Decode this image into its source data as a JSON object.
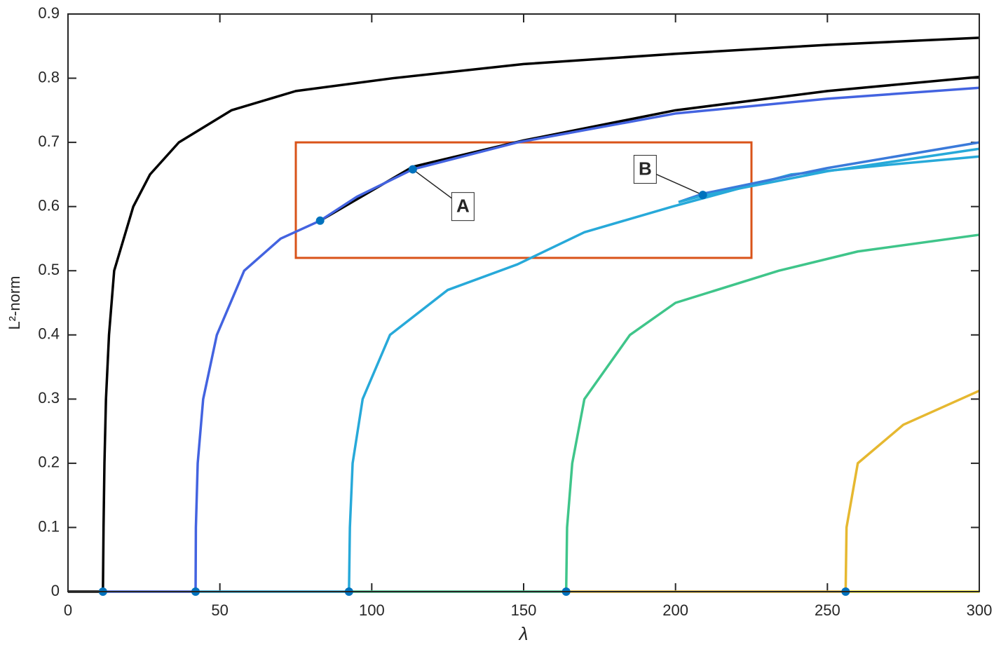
{
  "chart_data": {
    "type": "line",
    "xlabel": "λ",
    "ylabel": "L²-norm",
    "xlim": [
      0,
      300
    ],
    "xticks": [
      0,
      50,
      100,
      150,
      200,
      250,
      300
    ],
    "ylim": [
      0,
      0.9
    ],
    "yticks": [
      0,
      0.1,
      0.2,
      0.3,
      0.4,
      0.5,
      0.6,
      0.7,
      0.8,
      0.9
    ],
    "series": [
      {
        "color": "#000000",
        "x": [
          11.5,
          11.7,
          12,
          12.5,
          13.5,
          15.2,
          21.5,
          27,
          36.5,
          53.8,
          75,
          107,
          150,
          200,
          250,
          300
        ],
        "values": [
          0,
          0.1,
          0.2,
          0.3,
          0.4,
          0.5,
          0.6,
          0.65,
          0.7,
          0.75,
          0.78,
          0.8,
          0.822,
          0.838,
          0.852,
          0.863
        ]
      },
      {
        "color": "#000000",
        "x": [
          83,
          113.5,
          150,
          200,
          250,
          300
        ],
        "values": [
          0.578,
          0.662,
          0.703,
          0.75,
          0.78,
          0.802
        ]
      },
      {
        "color": "#4363e0",
        "x": [
          42,
          42.1,
          42.7,
          44.5,
          49,
          58,
          70,
          83,
          95,
          113.5,
          148,
          200,
          250,
          300
        ],
        "values": [
          0,
          0.1,
          0.2,
          0.3,
          0.4,
          0.5,
          0.55,
          0.578,
          0.615,
          0.658,
          0.7,
          0.745,
          0.768,
          0.785
        ]
      },
      {
        "color": "#27a9d9",
        "x": [
          92.5,
          92.8,
          93.7,
          97,
          106,
          125,
          148,
          170,
          199,
          238,
          270,
          300
        ],
        "values": [
          0,
          0.1,
          0.2,
          0.3,
          0.4,
          0.47,
          0.51,
          0.56,
          0.6,
          0.65,
          0.665,
          0.678
        ]
      },
      {
        "color": "#3a7ada",
        "x": [
          201,
          209,
          250,
          300
        ],
        "values": [
          0.607,
          0.62,
          0.66,
          0.7
        ]
      },
      {
        "color": "#27a9d9",
        "x": [
          201,
          209,
          250,
          300
        ],
        "values": [
          0.607,
          0.617,
          0.655,
          0.69
        ]
      },
      {
        "color": "#3fc58a",
        "x": [
          164,
          164.3,
          166,
          170,
          185,
          200,
          234,
          260,
          300
        ],
        "values": [
          0,
          0.1,
          0.2,
          0.3,
          0.4,
          0.45,
          0.5,
          0.53,
          0.556
        ]
      },
      {
        "color": "#e6b830",
        "x": [
          256,
          256.3,
          260,
          275,
          300
        ],
        "values": [
          0,
          0.1,
          0.2,
          0.26,
          0.313
        ]
      },
      {
        "color": "#000000",
        "x": [
          0,
          11.5
        ],
        "values": [
          0,
          0
        ]
      },
      {
        "color": "#4363e0",
        "x": [
          11.5,
          42
        ],
        "values": [
          0,
          0
        ]
      },
      {
        "color": "#27a9d9",
        "x": [
          42,
          92.5
        ],
        "values": [
          0,
          0
        ]
      },
      {
        "color": "#3fc58a",
        "x": [
          92.5,
          164
        ],
        "values": [
          0,
          0
        ]
      },
      {
        "color": "#e6b830",
        "x": [
          164,
          256
        ],
        "values": [
          0,
          0
        ]
      },
      {
        "color": "#f5e82a",
        "x": [
          256,
          300
        ],
        "values": [
          0,
          0
        ]
      }
    ],
    "points": {
      "color": "#0072bd",
      "x": [
        11.5,
        42,
        92.5,
        164,
        256,
        83,
        113.5,
        209
      ],
      "values": [
        0,
        0,
        0,
        0,
        0,
        0.578,
        0.658,
        0.618
      ]
    },
    "box": {
      "color": "#d95319",
      "x0": 75,
      "x1": 225,
      "y0": 0.52,
      "y1": 0.7
    },
    "annotations": [
      {
        "text": "A",
        "x": 130,
        "y": 0.6,
        "xy": [
          113.5,
          0.658
        ]
      },
      {
        "text": "B",
        "x": 190,
        "y": 0.658,
        "xy": [
          209,
          0.618
        ]
      }
    ]
  }
}
